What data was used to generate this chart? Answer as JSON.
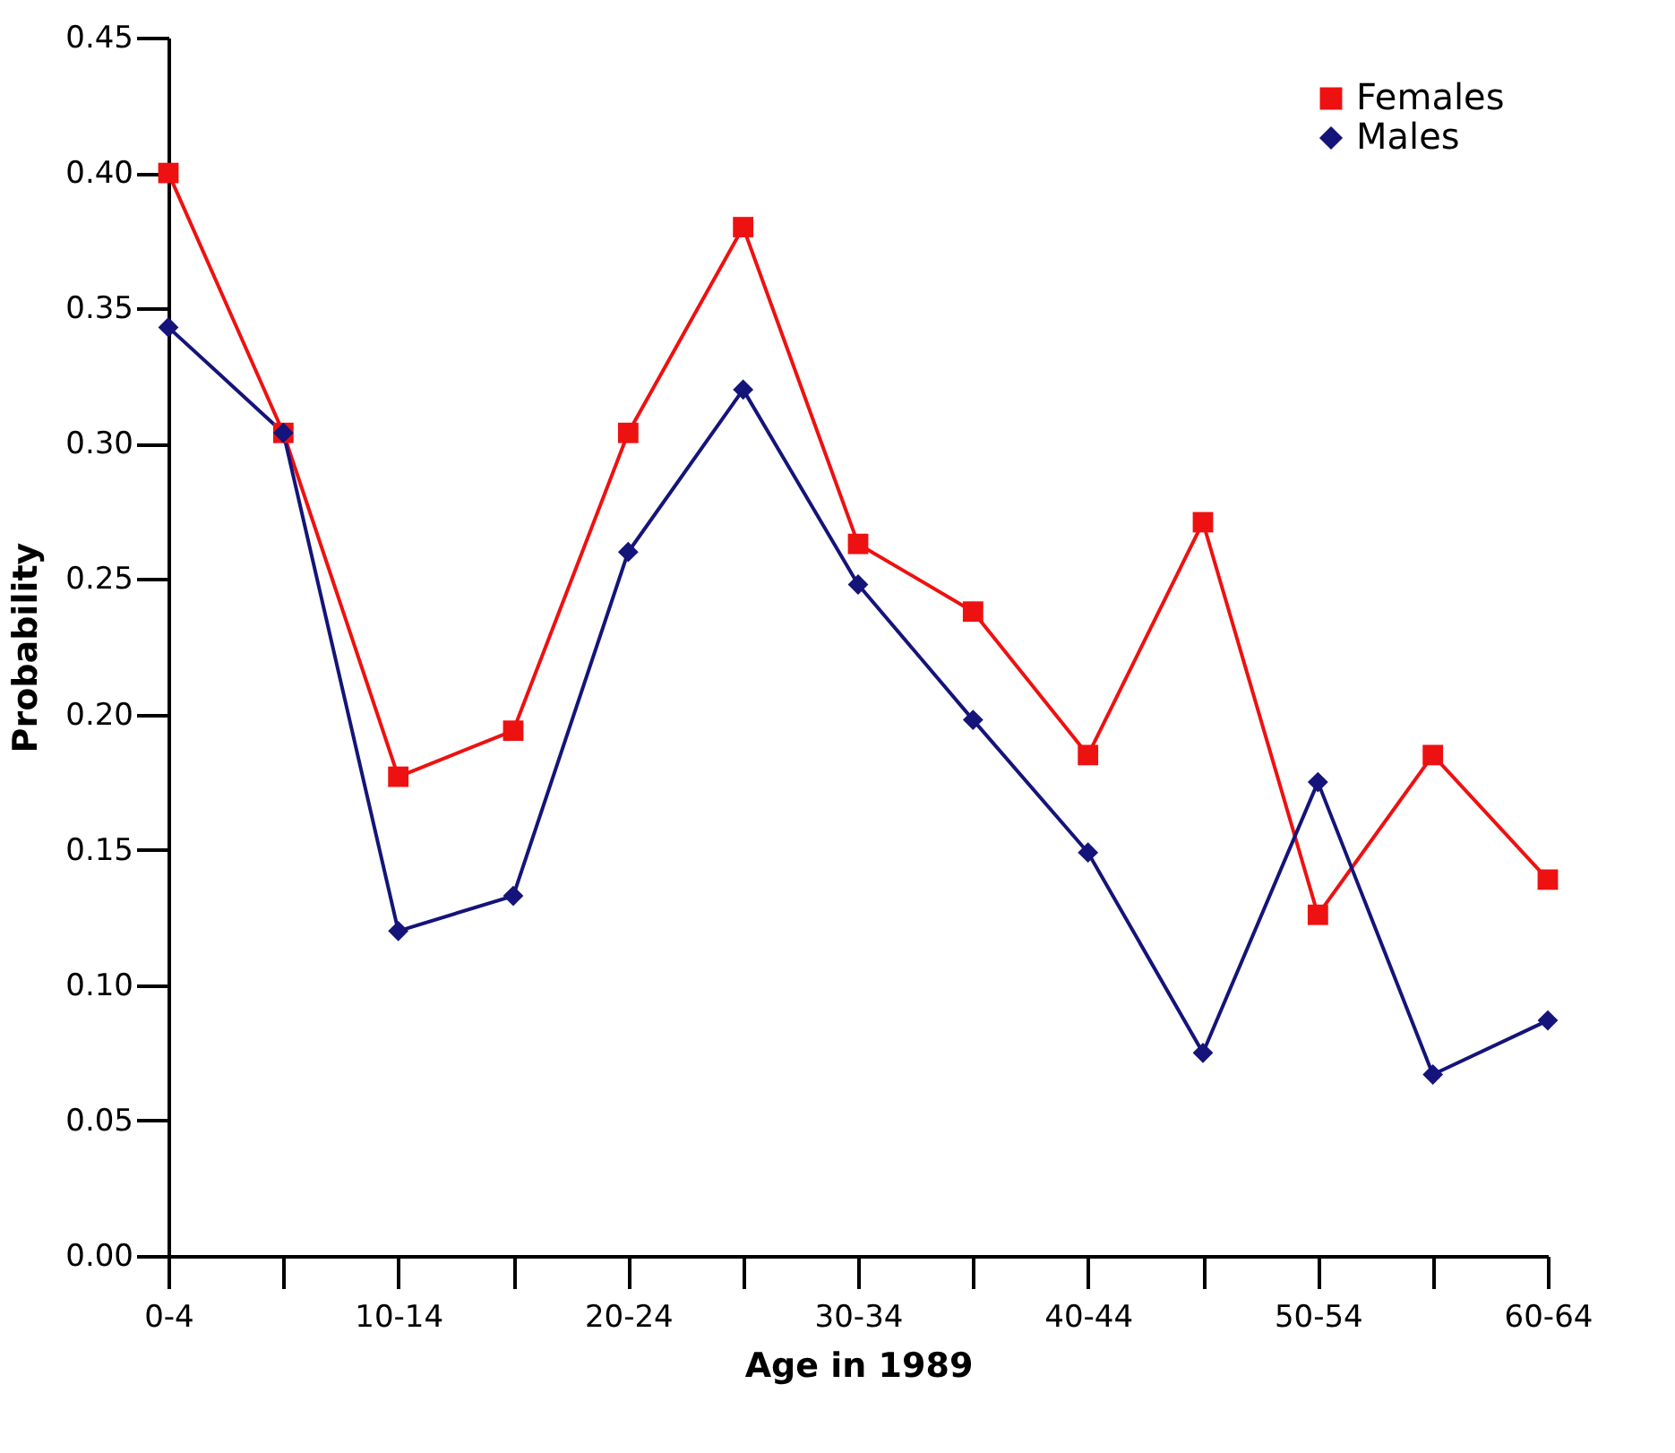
{
  "chart_data": {
    "type": "line",
    "xlabel": "Age in 1989",
    "ylabel": "Probability",
    "categories": [
      "0-4",
      null,
      "10-14",
      null,
      "20-24",
      null,
      "30-34",
      null,
      "40-44",
      null,
      "50-54",
      null,
      "60-64"
    ],
    "series": [
      {
        "name": "Females",
        "color": "#ee1111",
        "marker": "square",
        "values": [
          0.4,
          0.304,
          0.177,
          0.194,
          0.304,
          0.38,
          0.263,
          0.238,
          0.185,
          0.271,
          0.126,
          0.185,
          0.139
        ]
      },
      {
        "name": "Males",
        "color": "#14147a",
        "marker": "diamond",
        "values": [
          0.343,
          0.304,
          0.12,
          0.133,
          0.26,
          0.32,
          0.248,
          0.198,
          0.149,
          0.075,
          0.175,
          0.067,
          0.087
        ]
      }
    ],
    "ylim": [
      0,
      0.45
    ],
    "yticks": [
      {
        "value": 0,
        "label": "0.00"
      },
      0.05,
      {
        "value": 0.1,
        "label": "0.10"
      },
      0.15,
      {
        "value": 0.2,
        "label": "0.20"
      },
      0.25,
      {
        "value": 0.3,
        "label": "0.30"
      },
      0.35,
      {
        "value": 0.4,
        "label": "0.40"
      },
      0.45
    ],
    "grid": false,
    "legend": "top right",
    "line_style": "solid"
  }
}
